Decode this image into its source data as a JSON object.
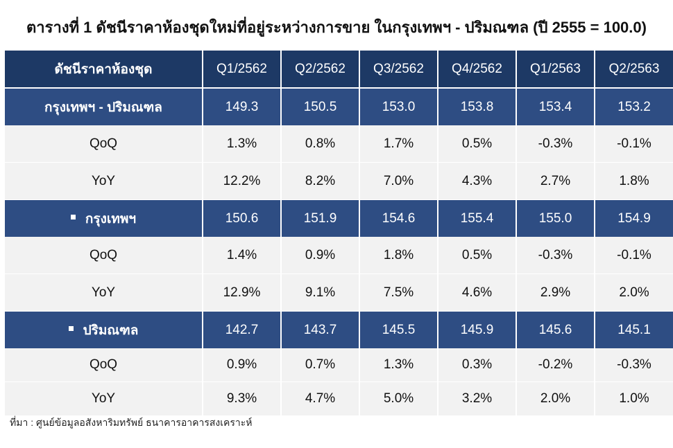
{
  "title": "ตารางที่ 1 ดัชนีราคาห้องชุดใหม่ที่อยู่ระหว่างการขาย ในกรุงเทพฯ - ปริมณฑล (ปี 2555 = 100.0)",
  "source": "ที่มา : ศูนย์ข้อมูลอสังหาริมทรัพย์ ธนาคารอาคารสงเคราะห์",
  "colors": {
    "header_bg": "#1d3965",
    "index_row_bg": "#2e4d83",
    "change_row_bg": "#f2f2f2",
    "negative": "#e0141e"
  },
  "chart_data": {
    "type": "table",
    "title": "ตารางที่ 1 ดัชนีราคาห้องชุดใหม่ที่อยู่ระหว่างการขาย ในกรุงเทพฯ - ปริมณฑล (ปี 2555 = 100.0)",
    "header_label": "ดัชนีราคาห้องชุด",
    "columns": [
      "Q1/2562",
      "Q2/2562",
      "Q3/2562",
      "Q4/2562",
      "Q1/2563",
      "Q2/2563"
    ],
    "rows": [
      {
        "label": "กรุงเทพฯ - ปริมณฑล",
        "kind": "index",
        "values": [
          "149.3",
          "150.5",
          "153.0",
          "153.8",
          "153.4",
          "153.2"
        ]
      },
      {
        "label": "QoQ",
        "kind": "change",
        "values": [
          "1.3%",
          "0.8%",
          "1.7%",
          "0.5%",
          "-0.3%",
          "-0.1%"
        ]
      },
      {
        "label": "YoY",
        "kind": "change",
        "values": [
          "12.2%",
          "8.2%",
          "7.0%",
          "4.3%",
          "2.7%",
          "1.8%"
        ]
      },
      {
        "label": "กรุงเทพฯ",
        "kind": "index",
        "bullet": true,
        "values": [
          "150.6",
          "151.9",
          "154.6",
          "155.4",
          "155.0",
          "154.9"
        ]
      },
      {
        "label": "QoQ",
        "kind": "change",
        "values": [
          "1.4%",
          "0.9%",
          "1.8%",
          "0.5%",
          "-0.3%",
          "-0.1%"
        ]
      },
      {
        "label": "YoY",
        "kind": "change",
        "values": [
          "12.9%",
          "9.1%",
          "7.5%",
          "4.6%",
          "2.9%",
          "2.0%"
        ]
      },
      {
        "label": "ปริมณฑล",
        "kind": "index",
        "bullet": true,
        "values": [
          "142.7",
          "143.7",
          "145.5",
          "145.9",
          "145.6",
          "145.1"
        ]
      },
      {
        "label": "QoQ",
        "kind": "change",
        "values": [
          "0.9%",
          "0.7%",
          "1.3%",
          "0.3%",
          "-0.2%",
          "-0.3%"
        ]
      },
      {
        "label": "YoY",
        "kind": "change",
        "values": [
          "9.3%",
          "4.7%",
          "5.0%",
          "3.2%",
          "2.0%",
          "1.0%"
        ]
      }
    ]
  }
}
